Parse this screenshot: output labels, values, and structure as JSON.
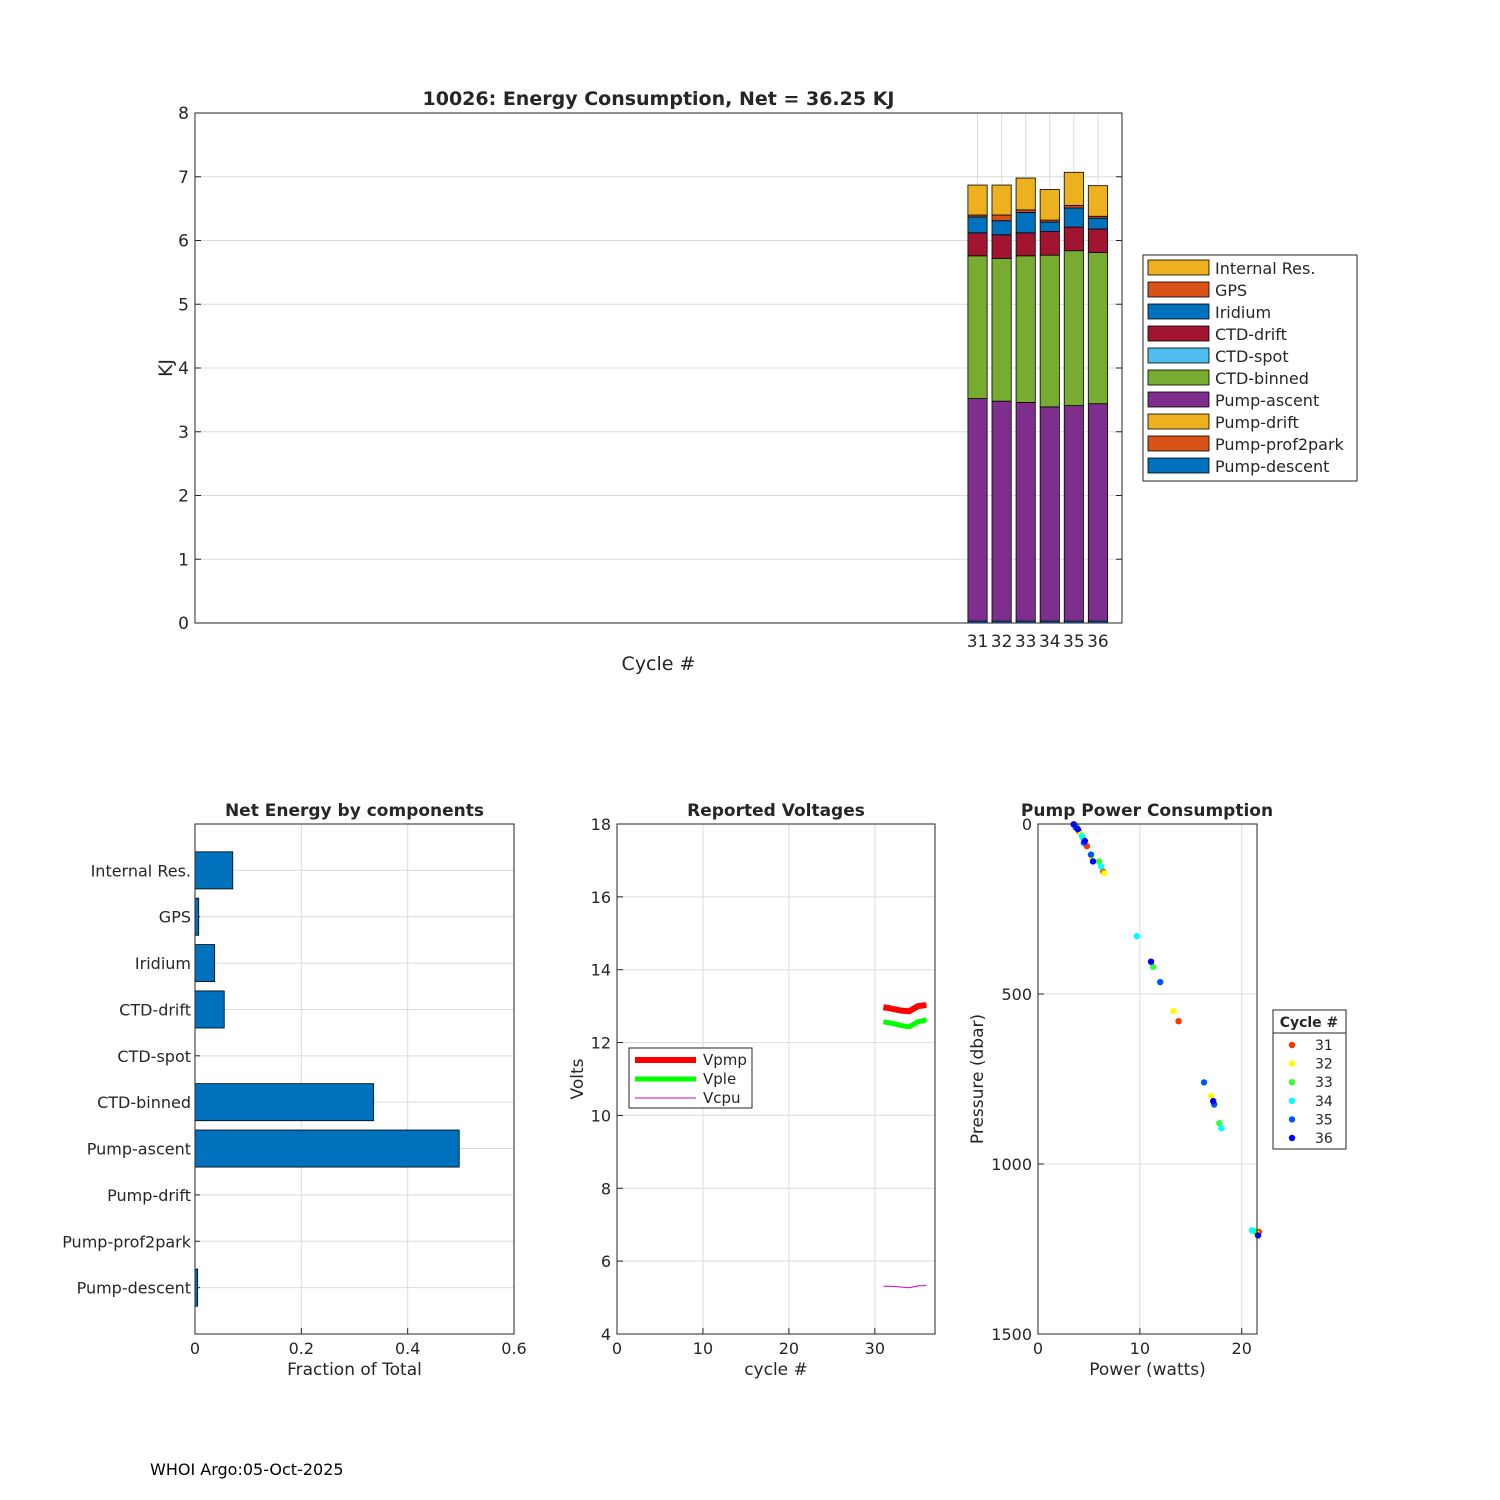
{
  "footer": "WHOI Argo:05-Oct-2025",
  "chart_data": [
    {
      "type": "bar",
      "stacked": true,
      "title": "10026: Energy Consumption,  Net =  36.25 KJ",
      "xlabel": "Cycle #",
      "ylabel": "KJ",
      "ylim": [
        0,
        8
      ],
      "yticks": [
        0,
        1,
        2,
        3,
        4,
        5,
        6,
        7,
        8
      ],
      "xlim": [
        -1.5,
        37
      ],
      "grid": true,
      "legend_position": "right",
      "categories": [
        "31",
        "32",
        "33",
        "34",
        "35",
        "36"
      ],
      "x": [
        31,
        32,
        33,
        34,
        35,
        36
      ],
      "series": [
        {
          "name": "Pump-descent",
          "color": "#0072BD",
          "values": [
            0.03,
            0.03,
            0.03,
            0.03,
            0.03,
            0.03
          ]
        },
        {
          "name": "Pump-prof2park",
          "color": "#D95319",
          "values": [
            0.0,
            0.0,
            0.0,
            0.0,
            0.0,
            0.0
          ]
        },
        {
          "name": "Pump-drift",
          "color": "#EDB120",
          "values": [
            0.0,
            0.0,
            0.0,
            0.0,
            0.0,
            0.0
          ]
        },
        {
          "name": "Pump-ascent",
          "color": "#7E2F8E",
          "values": [
            3.49,
            3.45,
            3.43,
            3.36,
            3.38,
            3.41
          ]
        },
        {
          "name": "CTD-binned",
          "color": "#77AC30",
          "values": [
            2.24,
            2.24,
            2.3,
            2.38,
            2.43,
            2.37
          ]
        },
        {
          "name": "CTD-spot",
          "color": "#4DBEEE",
          "values": [
            0.0,
            0.0,
            0.0,
            0.0,
            0.0,
            0.0
          ]
        },
        {
          "name": "CTD-drift",
          "color": "#A2142F",
          "values": [
            0.36,
            0.37,
            0.36,
            0.37,
            0.37,
            0.37
          ]
        },
        {
          "name": "Iridium",
          "color": "#0072BD",
          "values": [
            0.25,
            0.22,
            0.32,
            0.15,
            0.3,
            0.17
          ]
        },
        {
          "name": "GPS",
          "color": "#D95319",
          "values": [
            0.03,
            0.09,
            0.04,
            0.03,
            0.04,
            0.03
          ]
        },
        {
          "name": "Internal Res.",
          "color": "#EDB120",
          "values": [
            0.47,
            0.47,
            0.5,
            0.48,
            0.52,
            0.48
          ]
        }
      ]
    },
    {
      "type": "bar",
      "orientation": "horizontal",
      "title": "Net Energy by components",
      "xlabel": "Fraction of Total",
      "ylabel": "",
      "xlim": [
        0,
        0.6
      ],
      "xticks": [
        0,
        0.2,
        0.4,
        0.6
      ],
      "grid": true,
      "color": "#0072BD",
      "categories": [
        "Internal Res.",
        "GPS",
        "Iridium",
        "CTD-drift",
        "CTD-spot",
        "CTD-binned",
        "Pump-ascent",
        "Pump-drift",
        "Pump-prof2park",
        "Pump-descent"
      ],
      "values": [
        0.071,
        0.007,
        0.037,
        0.055,
        0.0,
        0.336,
        0.497,
        0.0,
        0.0,
        0.005
      ]
    },
    {
      "type": "line",
      "title": "Reported Voltages",
      "xlabel": "cycle #",
      "ylabel": "Volts",
      "xlim": [
        0,
        37
      ],
      "ylim": [
        4,
        18
      ],
      "xticks": [
        0,
        10,
        20,
        30
      ],
      "yticks": [
        4,
        6,
        8,
        10,
        12,
        14,
        16,
        18
      ],
      "grid": true,
      "legend_position": "left",
      "series": [
        {
          "name": "Vpmp",
          "color": "#ff0000",
          "width": 6,
          "x": [
            31,
            32,
            33,
            34,
            35,
            36
          ],
          "y": [
            12.97,
            12.93,
            12.88,
            12.86,
            13.0,
            13.03
          ]
        },
        {
          "name": "Vple",
          "color": "#00ff00",
          "width": 5,
          "x": [
            31,
            32,
            33,
            34,
            35,
            36
          ],
          "y": [
            12.57,
            12.53,
            12.47,
            12.43,
            12.57,
            12.62
          ]
        },
        {
          "name": "Vcpu",
          "color": "#cc00cc",
          "width": 1,
          "x": [
            31,
            32,
            33,
            34,
            35,
            36
          ],
          "y": [
            5.31,
            5.31,
            5.29,
            5.27,
            5.32,
            5.33
          ]
        }
      ]
    },
    {
      "type": "scatter",
      "title": "Pump Power Consumption",
      "xlabel": "Power (watts)",
      "ylabel": "Pressure (dbar)",
      "xlim": [
        0,
        21.5
      ],
      "ylim": [
        0,
        1500
      ],
      "y_reversed": true,
      "xticks": [
        0,
        10,
        20
      ],
      "yticks": [
        0,
        500,
        1000,
        1500
      ],
      "grid": true,
      "legend_title": "Cycle #",
      "legend_position": "right",
      "series": [
        {
          "name": "31",
          "color": "#ff3300",
          "x": [
            3.6,
            4.0,
            4.8,
            6.4,
            13.8,
            21.7
          ],
          "y": [
            2,
            20,
            65,
            140,
            580,
            1200
          ]
        },
        {
          "name": "32",
          "color": "#ffff00",
          "x": [
            3.7,
            4.2,
            5.3,
            6.5,
            13.3,
            17.0,
            21.5
          ],
          "y": [
            5,
            30,
            100,
            145,
            550,
            800,
            1205
          ]
        },
        {
          "name": "33",
          "color": "#33ff33",
          "x": [
            3.8,
            4.4,
            6.0,
            11.3,
            17.8,
            21.3
          ],
          "y": [
            8,
            40,
            110,
            420,
            880,
            1198
          ]
        },
        {
          "name": "34",
          "color": "#00ffff",
          "x": [
            3.6,
            4.3,
            6.2,
            9.7,
            18.0,
            21.0
          ],
          "y": [
            3,
            35,
            125,
            330,
            895,
            1195
          ]
        },
        {
          "name": "35",
          "color": "#0055ff",
          "x": [
            3.7,
            4.5,
            5.2,
            12.0,
            16.3,
            17.3
          ],
          "y": [
            10,
            55,
            90,
            465,
            760,
            825
          ]
        },
        {
          "name": "36",
          "color": "#0000ff",
          "x": [
            3.5,
            3.9,
            4.6,
            5.4,
            11.1,
            17.2,
            21.6
          ],
          "y": [
            1,
            15,
            50,
            110,
            405,
            815,
            1210
          ]
        }
      ]
    }
  ]
}
